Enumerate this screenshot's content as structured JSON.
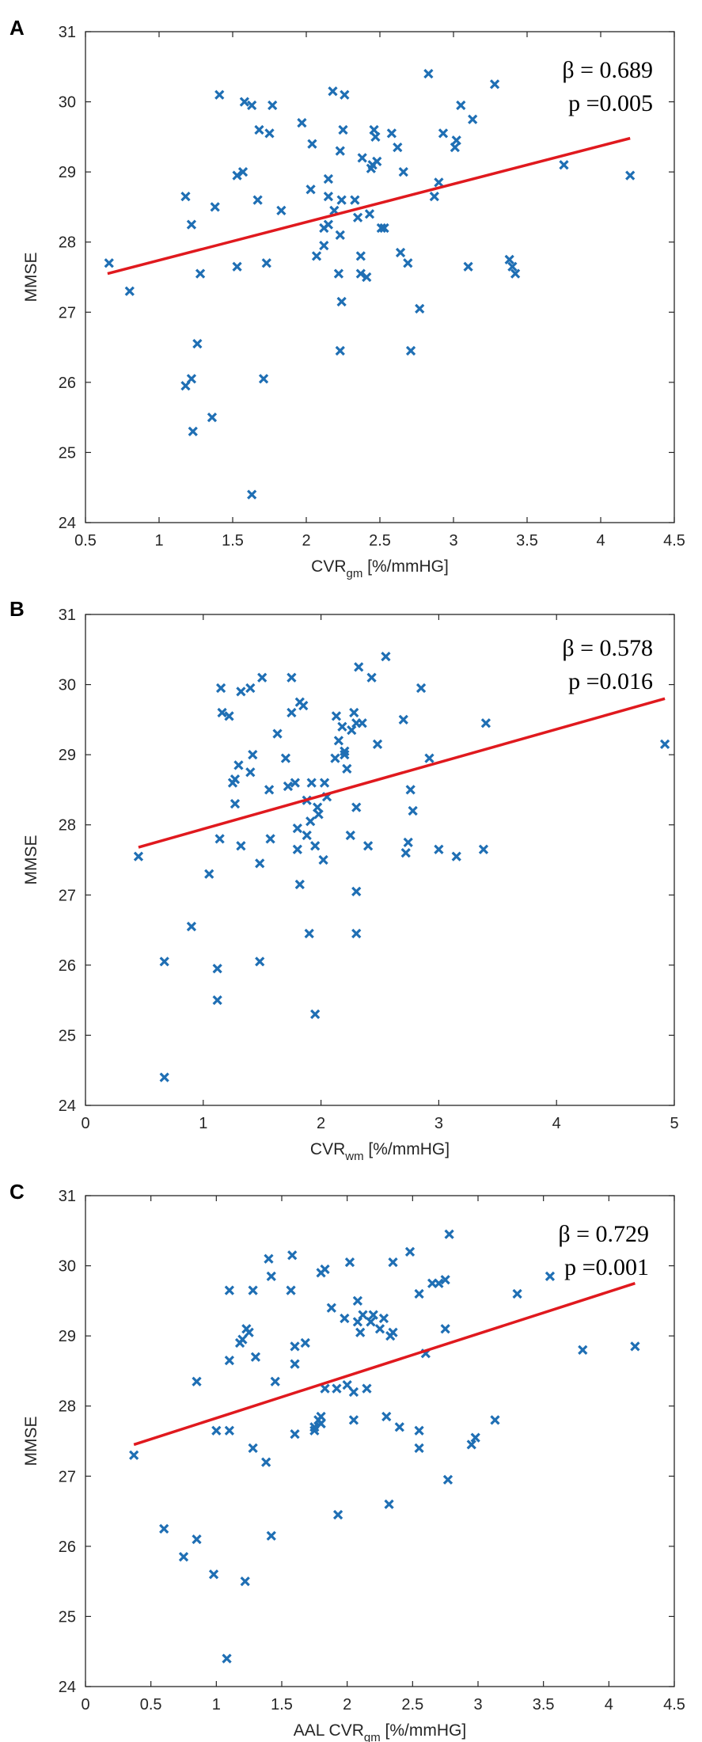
{
  "figure_title": "",
  "colors": {
    "marker": "#1f6fb4",
    "fit_line": "#e0191e",
    "axis": "#262626"
  },
  "chart_data": [
    {
      "type": "scatter",
      "panel_label": "A",
      "title": "",
      "xlabel_main": "CVR",
      "xlabel_sub": "gm",
      "xlabel_unit": " [%/mmHG]",
      "ylabel": "MMSE",
      "xlim": [
        0.5,
        4.5
      ],
      "ylim": [
        24,
        31
      ],
      "xticks": [
        0.5,
        1,
        1.5,
        2,
        2.5,
        3,
        3.5,
        4,
        4.5
      ],
      "xtick_labels": [
        "0.5",
        "1",
        "1.5",
        "2",
        "2.5",
        "3",
        "3.5",
        "4",
        "4.5"
      ],
      "yticks": [
        24,
        25,
        26,
        27,
        28,
        29,
        30,
        31
      ],
      "ytick_labels": [
        "24",
        "25",
        "26",
        "27",
        "28",
        "29",
        "30",
        "31"
      ],
      "stat_beta": "β = 0.689",
      "stat_p": "p =0.005",
      "fit_line": {
        "x": [
          0.65,
          4.2
        ],
        "y": [
          27.55,
          29.48
        ]
      },
      "points": [
        [
          0.66,
          27.7
        ],
        [
          0.8,
          27.3
        ],
        [
          1.18,
          28.65
        ],
        [
          1.22,
          28.25
        ],
        [
          1.18,
          25.95
        ],
        [
          1.22,
          26.05
        ],
        [
          1.23,
          25.3
        ],
        [
          1.26,
          26.55
        ],
        [
          1.28,
          27.55
        ],
        [
          1.36,
          25.5
        ],
        [
          1.38,
          28.5
        ],
        [
          1.41,
          30.1
        ],
        [
          1.53,
          28.95
        ],
        [
          1.53,
          27.65
        ],
        [
          1.57,
          29.0
        ],
        [
          1.58,
          30.0
        ],
        [
          1.63,
          29.95
        ],
        [
          1.63,
          24.4
        ],
        [
          1.67,
          28.6
        ],
        [
          1.68,
          29.6
        ],
        [
          1.71,
          26.05
        ],
        [
          1.73,
          27.7
        ],
        [
          1.75,
          29.55
        ],
        [
          1.77,
          29.95
        ],
        [
          1.83,
          28.45
        ],
        [
          1.97,
          29.7
        ],
        [
          2.03,
          28.75
        ],
        [
          2.04,
          29.4
        ],
        [
          2.07,
          27.8
        ],
        [
          2.12,
          28.2
        ],
        [
          2.12,
          27.95
        ],
        [
          2.15,
          28.65
        ],
        [
          2.15,
          28.9
        ],
        [
          2.15,
          28.25
        ],
        [
          2.18,
          30.15
        ],
        [
          2.19,
          28.45
        ],
        [
          2.22,
          27.55
        ],
        [
          2.23,
          29.3
        ],
        [
          2.23,
          28.1
        ],
        [
          2.24,
          28.6
        ],
        [
          2.24,
          27.15
        ],
        [
          2.23,
          26.45
        ],
        [
          2.25,
          29.6
        ],
        [
          2.26,
          30.1
        ],
        [
          2.33,
          28.6
        ],
        [
          2.35,
          28.35
        ],
        [
          2.37,
          27.8
        ],
        [
          2.37,
          27.55
        ],
        [
          2.38,
          29.2
        ],
        [
          2.41,
          27.5
        ],
        [
          2.43,
          28.4
        ],
        [
          2.44,
          29.05
        ],
        [
          2.45,
          29.1
        ],
        [
          2.46,
          29.6
        ],
        [
          2.47,
          29.5
        ],
        [
          2.48,
          29.15
        ],
        [
          2.51,
          28.2
        ],
        [
          2.53,
          28.2
        ],
        [
          2.58,
          29.55
        ],
        [
          2.62,
          29.35
        ],
        [
          2.64,
          27.85
        ],
        [
          2.66,
          29.0
        ],
        [
          2.69,
          27.7
        ],
        [
          2.71,
          26.45
        ],
        [
          2.77,
          27.05
        ],
        [
          2.83,
          30.4
        ],
        [
          2.87,
          28.65
        ],
        [
          2.9,
          28.85
        ],
        [
          2.93,
          29.55
        ],
        [
          3.01,
          29.35
        ],
        [
          3.02,
          29.45
        ],
        [
          3.05,
          29.95
        ],
        [
          3.1,
          27.65
        ],
        [
          3.13,
          29.75
        ],
        [
          3.28,
          30.25
        ],
        [
          3.38,
          27.75
        ],
        [
          3.4,
          27.65
        ],
        [
          3.42,
          27.55
        ],
        [
          3.75,
          29.1
        ],
        [
          4.2,
          28.95
        ]
      ]
    },
    {
      "type": "scatter",
      "panel_label": "B",
      "title": "",
      "xlabel_main": "CVR",
      "xlabel_sub": "wm",
      "xlabel_unit": " [%/mmHG]",
      "ylabel": "MMSE",
      "xlim": [
        0,
        5
      ],
      "ylim": [
        24,
        31
      ],
      "xticks": [
        0,
        1,
        2,
        3,
        4,
        5
      ],
      "xtick_labels": [
        "0",
        "1",
        "2",
        "3",
        "4",
        "5"
      ],
      "yticks": [
        24,
        25,
        26,
        27,
        28,
        29,
        30,
        31
      ],
      "ytick_labels": [
        "24",
        "25",
        "26",
        "27",
        "28",
        "29",
        "30",
        "31"
      ],
      "stat_beta": "β = 0.578",
      "stat_p": "p =0.016",
      "fit_line": {
        "x": [
          0.45,
          4.92
        ],
        "y": [
          27.68,
          29.8
        ]
      },
      "points": [
        [
          0.45,
          27.55
        ],
        [
          0.67,
          26.05
        ],
        [
          0.67,
          24.4
        ],
        [
          0.9,
          26.55
        ],
        [
          1.05,
          27.3
        ],
        [
          1.12,
          25.95
        ],
        [
          1.12,
          25.5
        ],
        [
          1.14,
          27.8
        ],
        [
          1.15,
          29.95
        ],
        [
          1.16,
          29.6
        ],
        [
          1.22,
          29.55
        ],
        [
          1.25,
          28.6
        ],
        [
          1.27,
          28.65
        ],
        [
          1.27,
          28.3
        ],
        [
          1.3,
          28.85
        ],
        [
          1.32,
          27.7
        ],
        [
          1.32,
          29.9
        ],
        [
          1.4,
          29.95
        ],
        [
          1.4,
          28.75
        ],
        [
          1.42,
          29.0
        ],
        [
          1.48,
          27.45
        ],
        [
          1.5,
          30.1
        ],
        [
          1.48,
          26.05
        ],
        [
          1.56,
          28.5
        ],
        [
          1.57,
          27.8
        ],
        [
          1.63,
          29.3
        ],
        [
          1.7,
          28.95
        ],
        [
          1.72,
          28.55
        ],
        [
          1.75,
          30.1
        ],
        [
          1.75,
          29.6
        ],
        [
          1.78,
          28.6
        ],
        [
          1.8,
          27.95
        ],
        [
          1.8,
          27.65
        ],
        [
          1.82,
          29.75
        ],
        [
          1.82,
          27.15
        ],
        [
          1.85,
          29.7
        ],
        [
          1.88,
          28.35
        ],
        [
          1.88,
          27.85
        ],
        [
          1.9,
          26.45
        ],
        [
          1.91,
          28.05
        ],
        [
          1.92,
          28.6
        ],
        [
          1.95,
          27.7
        ],
        [
          1.97,
          28.25
        ],
        [
          1.95,
          25.3
        ],
        [
          1.98,
          28.15
        ],
        [
          2.02,
          27.5
        ],
        [
          2.03,
          28.6
        ],
        [
          2.05,
          28.4
        ],
        [
          2.12,
          28.95
        ],
        [
          2.13,
          29.55
        ],
        [
          2.15,
          29.2
        ],
        [
          2.18,
          29.4
        ],
        [
          2.2,
          29.0
        ],
        [
          2.2,
          29.05
        ],
        [
          2.22,
          28.8
        ],
        [
          2.25,
          27.85
        ],
        [
          2.26,
          29.35
        ],
        [
          2.28,
          29.6
        ],
        [
          2.3,
          29.45
        ],
        [
          2.3,
          28.25
        ],
        [
          2.3,
          27.05
        ],
        [
          2.3,
          26.45
        ],
        [
          2.32,
          30.25
        ],
        [
          2.35,
          29.45
        ],
        [
          2.4,
          27.7
        ],
        [
          2.43,
          30.1
        ],
        [
          2.48,
          29.15
        ],
        [
          2.55,
          30.4
        ],
        [
          2.7,
          29.5
        ],
        [
          2.72,
          27.6
        ],
        [
          2.74,
          27.75
        ],
        [
          2.76,
          28.5
        ],
        [
          2.78,
          28.2
        ],
        [
          2.85,
          29.95
        ],
        [
          2.92,
          28.95
        ],
        [
          3.0,
          27.65
        ],
        [
          3.15,
          27.55
        ],
        [
          3.38,
          27.65
        ],
        [
          3.4,
          29.45
        ],
        [
          4.92,
          29.15
        ]
      ]
    },
    {
      "type": "scatter",
      "panel_label": "C",
      "title": "",
      "xlabel_main": "AAL CVR",
      "xlabel_sub": "gm",
      "xlabel_unit": " [%/mmHG]",
      "ylabel": "MMSE",
      "xlim": [
        0,
        4.5
      ],
      "ylim": [
        24,
        31
      ],
      "xticks": [
        0,
        0.5,
        1,
        1.5,
        2,
        2.5,
        3,
        3.5,
        4,
        4.5
      ],
      "xtick_labels": [
        "0",
        "0.5",
        "1",
        "1.5",
        "2",
        "2.5",
        "3",
        "3.5",
        "4",
        "4.5"
      ],
      "yticks": [
        24,
        25,
        26,
        27,
        28,
        29,
        30,
        31
      ],
      "ytick_labels": [
        "24",
        "25",
        "26",
        "27",
        "28",
        "29",
        "30",
        "31"
      ],
      "stat_beta": "β = 0.729",
      "stat_p": "p =0.001",
      "fit_line": {
        "x": [
          0.37,
          4.2
        ],
        "y": [
          27.45,
          29.75
        ]
      },
      "points": [
        [
          0.37,
          27.3
        ],
        [
          0.6,
          26.25
        ],
        [
          0.75,
          25.85
        ],
        [
          0.85,
          26.1
        ],
        [
          0.85,
          28.35
        ],
        [
          0.98,
          25.6
        ],
        [
          1.0,
          27.65
        ],
        [
          1.08,
          24.4
        ],
        [
          1.1,
          29.65
        ],
        [
          1.1,
          28.65
        ],
        [
          1.1,
          27.65
        ],
        [
          1.18,
          28.9
        ],
        [
          1.2,
          28.95
        ],
        [
          1.22,
          25.5
        ],
        [
          1.23,
          29.1
        ],
        [
          1.25,
          29.05
        ],
        [
          1.28,
          29.65
        ],
        [
          1.28,
          27.4
        ],
        [
          1.3,
          28.7
        ],
        [
          1.38,
          27.2
        ],
        [
          1.4,
          30.1
        ],
        [
          1.42,
          29.85
        ],
        [
          1.42,
          26.15
        ],
        [
          1.45,
          28.35
        ],
        [
          1.57,
          29.65
        ],
        [
          1.58,
          30.15
        ],
        [
          1.6,
          28.85
        ],
        [
          1.6,
          28.6
        ],
        [
          1.6,
          27.6
        ],
        [
          1.68,
          28.9
        ],
        [
          1.75,
          27.65
        ],
        [
          1.75,
          27.7
        ],
        [
          1.78,
          27.8
        ],
        [
          1.8,
          27.85
        ],
        [
          1.8,
          27.75
        ],
        [
          1.8,
          27.75
        ],
        [
          1.8,
          29.9
        ],
        [
          1.83,
          29.95
        ],
        [
          1.83,
          28.25
        ],
        [
          1.88,
          29.4
        ],
        [
          1.92,
          28.25
        ],
        [
          1.93,
          26.45
        ],
        [
          1.98,
          29.25
        ],
        [
          2.0,
          28.3
        ],
        [
          2.02,
          30.05
        ],
        [
          2.05,
          28.2
        ],
        [
          2.05,
          27.8
        ],
        [
          2.08,
          29.2
        ],
        [
          2.08,
          29.5
        ],
        [
          2.1,
          29.05
        ],
        [
          2.12,
          29.3
        ],
        [
          2.15,
          28.25
        ],
        [
          2.18,
          29.2
        ],
        [
          2.2,
          29.3
        ],
        [
          2.25,
          29.1
        ],
        [
          2.28,
          29.25
        ],
        [
          2.3,
          27.85
        ],
        [
          2.32,
          26.6
        ],
        [
          2.33,
          29.0
        ],
        [
          2.35,
          30.05
        ],
        [
          2.35,
          29.05
        ],
        [
          2.4,
          27.7
        ],
        [
          2.48,
          30.2
        ],
        [
          2.55,
          29.6
        ],
        [
          2.55,
          27.65
        ],
        [
          2.55,
          27.4
        ],
        [
          2.6,
          28.75
        ],
        [
          2.65,
          29.75
        ],
        [
          2.7,
          29.75
        ],
        [
          2.75,
          29.8
        ],
        [
          2.77,
          26.95
        ],
        [
          2.78,
          30.45
        ],
        [
          2.95,
          27.45
        ],
        [
          2.98,
          27.55
        ],
        [
          3.13,
          27.8
        ],
        [
          3.3,
          29.6
        ],
        [
          3.55,
          29.85
        ],
        [
          3.8,
          28.8
        ],
        [
          4.2,
          28.85
        ],
        [
          2.75,
          29.1
        ]
      ]
    }
  ]
}
